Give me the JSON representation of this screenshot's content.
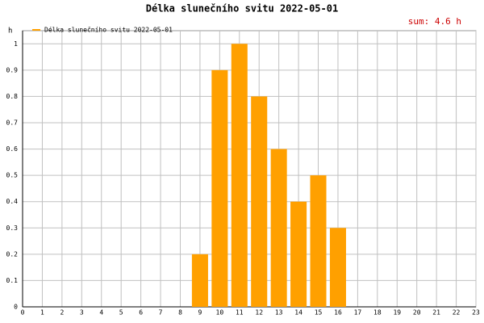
{
  "chart_data": {
    "type": "bar",
    "title": "Délka slunečního svitu 2022-05-01",
    "annotation": "sum: 4.6 h",
    "y_label": "h",
    "x": [
      0,
      1,
      2,
      3,
      4,
      5,
      6,
      7,
      8,
      9,
      10,
      11,
      12,
      13,
      14,
      15,
      16,
      17,
      18,
      19,
      20,
      21,
      22,
      23
    ],
    "series": [
      {
        "name": "Délka slunečního svitu 2022-05-01",
        "color": "#ffa000",
        "values": [
          0,
          0,
          0,
          0,
          0,
          0,
          0,
          0,
          0,
          0.2,
          0.9,
          1,
          0.8,
          0.6,
          0.4,
          0.5,
          0.3,
          0,
          0,
          0,
          0,
          0,
          0,
          0
        ]
      }
    ],
    "xlim": [
      0,
      23
    ],
    "xticks": [
      0,
      1,
      2,
      3,
      4,
      5,
      6,
      7,
      8,
      9,
      10,
      11,
      12,
      13,
      14,
      15,
      16,
      17,
      18,
      19,
      20,
      21,
      22,
      23
    ],
    "ylim": [
      0,
      1.05
    ],
    "yticks": [
      0,
      0.1,
      0.2,
      0.3,
      0.4,
      0.5,
      0.6,
      0.7,
      0.8,
      0.9,
      1
    ],
    "grid": true
  }
}
